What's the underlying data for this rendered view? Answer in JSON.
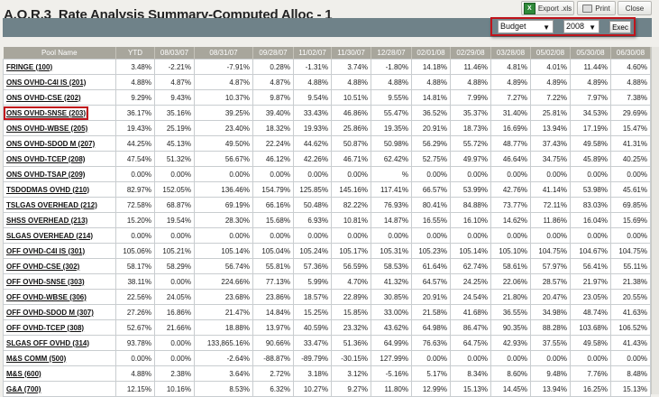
{
  "title": "A.O.R.3_Rate Analysis Summary-Computed Alloc - 1",
  "toolbar": {
    "export_label": "Export .xls",
    "print_label": "Print",
    "close_label": "Close"
  },
  "filters": {
    "type_value": "Budget",
    "year_value": "2008",
    "exec_label": "Exec",
    "highlight_color": "#c0141b"
  },
  "table": {
    "columns": [
      "Pool Name",
      "YTD",
      "08/03/07",
      "08/31/07",
      "09/28/07",
      "11/02/07",
      "11/30/07",
      "12/28/07",
      "02/01/08",
      "02/29/08",
      "03/28/08",
      "05/02/08",
      "05/30/08",
      "06/30/08"
    ],
    "rows": [
      [
        "FRINGE (100)",
        "3.48%",
        "-2.21%",
        "-7.91%",
        "0.28%",
        "-1.31%",
        "3.74%",
        "-1.80%",
        "14.18%",
        "11.46%",
        "4.81%",
        "4.01%",
        "11.44%",
        "4.60%"
      ],
      [
        "ONS OVHD-C4I IS (201)",
        "4.88%",
        "4.87%",
        "4.87%",
        "4.87%",
        "4.88%",
        "4.88%",
        "4.88%",
        "4.88%",
        "4.88%",
        "4.89%",
        "4.89%",
        "4.89%",
        "4.88%"
      ],
      [
        "ONS OVHD-CSE (202)",
        "9.29%",
        "9.43%",
        "10.37%",
        "9.87%",
        "9.54%",
        "10.51%",
        "9.55%",
        "14.81%",
        "7.99%",
        "7.27%",
        "7.22%",
        "7.97%",
        "7.38%"
      ],
      [
        "ONS OVHD-SNSE (203)",
        "36.17%",
        "35.16%",
        "39.25%",
        "39.40%",
        "33.43%",
        "46.86%",
        "55.47%",
        "36.52%",
        "35.37%",
        "31.40%",
        "25.81%",
        "34.53%",
        "29.69%"
      ],
      [
        "ONS OVHD-WBSE (205)",
        "19.43%",
        "25.19%",
        "23.40%",
        "18.32%",
        "19.93%",
        "25.86%",
        "19.35%",
        "20.91%",
        "18.73%",
        "16.69%",
        "13.94%",
        "17.19%",
        "15.47%"
      ],
      [
        "ONS OVHD-SDOD M (207)",
        "44.25%",
        "45.13%",
        "49.50%",
        "22.24%",
        "44.62%",
        "50.87%",
        "50.98%",
        "56.29%",
        "55.72%",
        "48.77%",
        "37.43%",
        "49.58%",
        "41.31%"
      ],
      [
        "ONS OVHD-TCEP (208)",
        "47.54%",
        "51.32%",
        "56.67%",
        "46.12%",
        "42.26%",
        "46.71%",
        "62.42%",
        "52.75%",
        "49.97%",
        "46.64%",
        "34.75%",
        "45.89%",
        "40.25%"
      ],
      [
        "ONS OVHD-TSAP (209)",
        "0.00%",
        "0.00%",
        "0.00%",
        "0.00%",
        "0.00%",
        "0.00%",
        "%",
        "0.00%",
        "0.00%",
        "0.00%",
        "0.00%",
        "0.00%",
        "0.00%"
      ],
      [
        "TSDODMAS OVHD (210)",
        "82.97%",
        "152.05%",
        "136.46%",
        "154.79%",
        "125.85%",
        "145.16%",
        "117.41%",
        "66.57%",
        "53.99%",
        "42.76%",
        "41.14%",
        "53.98%",
        "45.61%"
      ],
      [
        "TSLGAS OVERHEAD (212)",
        "72.58%",
        "68.87%",
        "69.19%",
        "66.16%",
        "50.48%",
        "82.22%",
        "76.93%",
        "80.41%",
        "84.88%",
        "73.77%",
        "72.11%",
        "83.03%",
        "69.85%"
      ],
      [
        "SHSS OVERHEAD (213)",
        "15.20%",
        "19.54%",
        "28.30%",
        "15.68%",
        "6.93%",
        "10.81%",
        "14.87%",
        "16.55%",
        "16.10%",
        "14.62%",
        "11.86%",
        "16.04%",
        "15.69%"
      ],
      [
        "SLGAS OVERHEAD (214)",
        "0.00%",
        "0.00%",
        "0.00%",
        "0.00%",
        "0.00%",
        "0.00%",
        "0.00%",
        "0.00%",
        "0.00%",
        "0.00%",
        "0.00%",
        "0.00%",
        "0.00%"
      ],
      [
        "OFF OVHD-C4I IS (301)",
        "105.06%",
        "105.21%",
        "105.14%",
        "105.04%",
        "105.24%",
        "105.17%",
        "105.31%",
        "105.23%",
        "105.14%",
        "105.10%",
        "104.75%",
        "104.67%",
        "104.75%"
      ],
      [
        "OFF OVHD-CSE (302)",
        "58.17%",
        "58.29%",
        "56.74%",
        "55.81%",
        "57.36%",
        "56.59%",
        "58.53%",
        "61.64%",
        "62.74%",
        "58.61%",
        "57.97%",
        "56.41%",
        "55.11%"
      ],
      [
        "OFF OVHD-SNSE (303)",
        "38.11%",
        "0.00%",
        "224.66%",
        "77.13%",
        "5.99%",
        "4.70%",
        "41.32%",
        "64.57%",
        "24.25%",
        "22.06%",
        "28.57%",
        "21.97%",
        "21.38%"
      ],
      [
        "OFF OVHD-WBSE (306)",
        "22.56%",
        "24.05%",
        "23.68%",
        "23.86%",
        "18.57%",
        "22.89%",
        "30.85%",
        "20.91%",
        "24.54%",
        "21.80%",
        "20.47%",
        "23.05%",
        "20.55%"
      ],
      [
        "OFF OVHD-SDOD M (307)",
        "27.26%",
        "16.86%",
        "21.47%",
        "14.84%",
        "15.25%",
        "15.85%",
        "33.00%",
        "21.58%",
        "41.68%",
        "36.55%",
        "34.98%",
        "48.74%",
        "41.63%"
      ],
      [
        "OFF OVHD-TCEP (308)",
        "52.67%",
        "21.66%",
        "18.88%",
        "13.97%",
        "40.59%",
        "23.32%",
        "43.62%",
        "64.98%",
        "86.47%",
        "90.35%",
        "88.28%",
        "103.68%",
        "106.52%"
      ],
      [
        "SLGAS OFF OVHD (314)",
        "93.78%",
        "0.00%",
        "133,865.16%",
        "90.66%",
        "33.47%",
        "51.36%",
        "64.99%",
        "76.63%",
        "64.75%",
        "42.93%",
        "37.55%",
        "49.58%",
        "41.43%"
      ],
      [
        "M&S COMM (500)",
        "0.00%",
        "0.00%",
        "-2.64%",
        "-88.87%",
        "-89.79%",
        "-30.15%",
        "127.99%",
        "0.00%",
        "0.00%",
        "0.00%",
        "0.00%",
        "0.00%",
        "0.00%"
      ],
      [
        "M&S (600)",
        "4.88%",
        "2.38%",
        "3.64%",
        "2.72%",
        "3.18%",
        "3.12%",
        "-5.16%",
        "5.17%",
        "8.34%",
        "8.60%",
        "9.48%",
        "7.76%",
        "8.48%"
      ],
      [
        "G&A (700)",
        "12.15%",
        "10.16%",
        "8.53%",
        "6.32%",
        "10.27%",
        "9.27%",
        "11.80%",
        "12.99%",
        "15.13%",
        "14.45%",
        "13.94%",
        "16.25%",
        "15.13%"
      ]
    ],
    "highlighted_row": "ONS OVHD-SNSE (203)"
  }
}
